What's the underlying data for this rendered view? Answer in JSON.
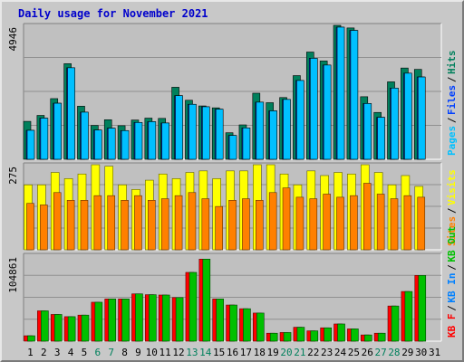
{
  "title": "Daily usage for November 2021",
  "colors": {
    "background": "#c8c8c8",
    "plot": "#c0c0c0",
    "hits": "#00805c",
    "files": "#0040ff",
    "pages": "#00c0ff",
    "visits": "#ffff00",
    "sites": "#ff8000",
    "kbin": "#0080ff",
    "kbout": "#00c000",
    "kbf": "#ff0000",
    "title": "#0000cc",
    "weekend": "#00805c"
  },
  "chart_data": [
    {
      "type": "bar",
      "name": "hits-files-pages",
      "ymax_label": "4946",
      "ylim": [
        0,
        4946
      ],
      "legend": [
        {
          "label": "Pages",
          "color": "#00c0ff"
        },
        {
          "label": "Files",
          "color": "#0040ff"
        },
        {
          "label": "Hits",
          "color": "#00805c"
        }
      ],
      "categories": [
        "1",
        "2",
        "3",
        "4",
        "5",
        "6",
        "7",
        "8",
        "9",
        "10",
        "11",
        "12",
        "13",
        "14",
        "15",
        "16",
        "17",
        "18",
        "19",
        "20",
        "21",
        "22",
        "23",
        "24",
        "25",
        "26",
        "27",
        "28",
        "29",
        "30",
        "31"
      ],
      "series": [
        {
          "name": "Hits",
          "values": [
            1400,
            1620,
            2240,
            3530,
            1960,
            1250,
            1460,
            1240,
            1450,
            1520,
            1510,
            2660,
            2180,
            1970,
            1900,
            980,
            1270,
            2440,
            2090,
            2280,
            3090,
            3960,
            3630,
            4946,
            4850,
            2310,
            1730,
            2860,
            3370,
            3320,
            0
          ]
        },
        {
          "name": "Files",
          "values": [
            1070,
            1520,
            2070,
            3380,
            1740,
            1080,
            1150,
            1060,
            1360,
            1390,
            1340,
            2350,
            2030,
            1940,
            1850,
            880,
            1160,
            2110,
            1790,
            2210,
            2910,
            3730,
            3480,
            4880,
            4760,
            2060,
            1550,
            2630,
            3180,
            3040,
            0
          ]
        },
        {
          "name": "Pages",
          "values": [
            1070,
            1520,
            2070,
            3380,
            1740,
            1080,
            1150,
            1060,
            1360,
            1390,
            1340,
            2350,
            2030,
            1940,
            1850,
            880,
            1160,
            2110,
            1790,
            2210,
            2910,
            3730,
            3480,
            4880,
            4760,
            2060,
            1550,
            2630,
            3180,
            3040,
            0
          ]
        }
      ]
    },
    {
      "type": "bar",
      "name": "visits-sites",
      "ymax_label": "275",
      "ylim": [
        0,
        275
      ],
      "legend": [
        {
          "label": "Sites",
          "color": "#ff8000"
        },
        {
          "label": "Visits",
          "color": "#ffff00"
        }
      ],
      "categories": [
        "1",
        "2",
        "3",
        "4",
        "5",
        "6",
        "7",
        "8",
        "9",
        "10",
        "11",
        "12",
        "13",
        "14",
        "15",
        "16",
        "17",
        "18",
        "19",
        "20",
        "21",
        "22",
        "23",
        "24",
        "25",
        "26",
        "27",
        "28",
        "29",
        "30",
        "31"
      ],
      "series": [
        {
          "name": "Visits",
          "values": [
            210,
            210,
            250,
            230,
            245,
            275,
            270,
            210,
            195,
            225,
            245,
            230,
            250,
            255,
            230,
            255,
            255,
            275,
            280,
            245,
            210,
            255,
            240,
            250,
            245,
            280,
            250,
            210,
            240,
            205,
            0
          ]
        },
        {
          "name": "Sites",
          "values": [
            150,
            145,
            185,
            160,
            160,
            175,
            175,
            160,
            175,
            160,
            165,
            175,
            185,
            165,
            140,
            160,
            165,
            160,
            185,
            200,
            170,
            165,
            180,
            170,
            175,
            215,
            180,
            165,
            175,
            170,
            0
          ]
        }
      ]
    },
    {
      "type": "bar",
      "name": "kbf-kbin-kbout",
      "ymax_label": "104861",
      "ylim": [
        0,
        104861
      ],
      "legend": [
        {
          "label": "KB F",
          "color": "#ff0000"
        },
        {
          "label": "KB In",
          "color": "#0080ff"
        },
        {
          "label": "KB Out",
          "color": "#00c000"
        }
      ],
      "categories": [
        "1",
        "2",
        "3",
        "4",
        "5",
        "6",
        "7",
        "8",
        "9",
        "10",
        "11",
        "12",
        "13",
        "14",
        "15",
        "16",
        "17",
        "18",
        "19",
        "20",
        "21",
        "22",
        "23",
        "24",
        "25",
        "26",
        "27",
        "28",
        "29",
        "30",
        "31"
      ],
      "series": [
        {
          "name": "KB F",
          "values": [
            6600,
            37000,
            32600,
            29900,
            31800,
            47500,
            51500,
            51500,
            57700,
            56700,
            56300,
            53200,
            83900,
            100100,
            51500,
            44100,
            39600,
            34300,
            9700,
            10600,
            17000,
            12600,
            16300,
            21000,
            15000,
            7600,
            9700,
            42900,
            60600,
            80200,
            0
          ]
        },
        {
          "name": "KB In",
          "values": [
            0,
            0,
            0,
            0,
            0,
            0,
            0,
            0,
            0,
            0,
            0,
            0,
            0,
            0,
            0,
            0,
            0,
            0,
            0,
            0,
            0,
            0,
            0,
            0,
            0,
            0,
            0,
            0,
            0,
            0,
            0
          ]
        },
        {
          "name": "KB Out",
          "values": [
            6600,
            37000,
            32600,
            29900,
            31800,
            47500,
            51500,
            51500,
            57700,
            56700,
            56300,
            53200,
            83900,
            100100,
            51500,
            44100,
            39600,
            34300,
            9700,
            10600,
            17000,
            12600,
            16300,
            21000,
            15000,
            7600,
            9700,
            42900,
            60600,
            80200,
            0
          ]
        }
      ]
    }
  ],
  "xaxis": {
    "labels": [
      "1",
      "2",
      "3",
      "4",
      "5",
      "6",
      "7",
      "8",
      "9",
      "10",
      "11",
      "12",
      "13",
      "14",
      "15",
      "16",
      "17",
      "18",
      "19",
      "20",
      "21",
      "22",
      "23",
      "24",
      "25",
      "26",
      "27",
      "28",
      "29",
      "30",
      "31"
    ],
    "weekend": [
      false,
      false,
      false,
      false,
      false,
      true,
      true,
      false,
      false,
      false,
      false,
      false,
      true,
      true,
      false,
      false,
      false,
      false,
      false,
      true,
      true,
      false,
      false,
      false,
      false,
      false,
      true,
      true,
      false,
      false,
      false
    ]
  }
}
